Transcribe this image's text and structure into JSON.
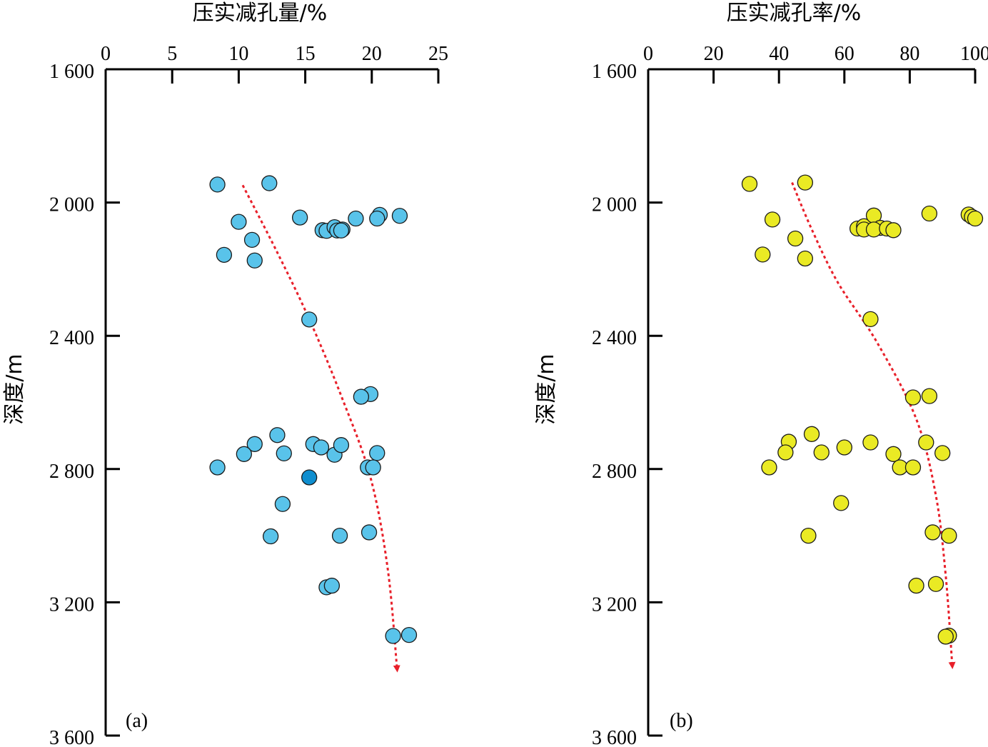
{
  "chart_data": [
    {
      "type": "scatter",
      "panel_label": "(a)",
      "title": "压实减孔量/%",
      "ylabel": "深度/m",
      "xlim": [
        0,
        25
      ],
      "x_ticks": [
        "0",
        "5",
        "10",
        "15",
        "20",
        "25"
      ],
      "ylim": [
        1600,
        3600
      ],
      "y_ticks": [
        "1 600",
        "2 000",
        "2 400",
        "2 800",
        "3 200",
        "3 600"
      ],
      "y_inverted": true,
      "x_axis_position": "top",
      "marker_color": "#59c3ea",
      "highlight_color": "#0f8ecf",
      "trend_color": "#e8202a",
      "trend": [
        [
          10.3,
          1948
        ],
        [
          12.9,
          2150
        ],
        [
          15.3,
          2350
        ],
        [
          17.7,
          2580
        ],
        [
          19.9,
          2825
        ],
        [
          21.2,
          3100
        ],
        [
          21.9,
          3400
        ]
      ],
      "points": [
        [
          8.4,
          1946
        ],
        [
          12.3,
          1942
        ],
        [
          10.0,
          2058
        ],
        [
          14.6,
          2045
        ],
        [
          11.0,
          2112
        ],
        [
          8.9,
          2157
        ],
        [
          11.2,
          2174
        ],
        [
          16.3,
          2083
        ],
        [
          16.6,
          2085
        ],
        [
          17.2,
          2074
        ],
        [
          17.4,
          2084
        ],
        [
          17.8,
          2081
        ],
        [
          17.7,
          2084
        ],
        [
          18.8,
          2048
        ],
        [
          20.6,
          2037
        ],
        [
          20.4,
          2048
        ],
        [
          22.1,
          2040
        ],
        [
          15.3,
          2351
        ],
        [
          19.9,
          2575
        ],
        [
          19.2,
          2583
        ],
        [
          12.9,
          2698
        ],
        [
          11.2,
          2725
        ],
        [
          10.4,
          2755
        ],
        [
          13.4,
          2753
        ],
        [
          15.6,
          2725
        ],
        [
          16.2,
          2735
        ],
        [
          17.2,
          2757
        ],
        [
          17.7,
          2728
        ],
        [
          20.4,
          2752
        ],
        [
          8.4,
          2795
        ],
        [
          19.7,
          2795
        ],
        [
          20.1,
          2795
        ],
        [
          15.3,
          2825,
          "highlight"
        ],
        [
          13.3,
          2905
        ],
        [
          12.4,
          3002
        ],
        [
          17.6,
          3000
        ],
        [
          19.8,
          2990
        ],
        [
          16.6,
          3155
        ],
        [
          17.0,
          3150
        ],
        [
          21.6,
          3301
        ],
        [
          22.8,
          3298
        ]
      ]
    },
    {
      "type": "scatter",
      "panel_label": "(b)",
      "title": "压实减孔率/%",
      "ylabel": "深度/m",
      "xlim": [
        0,
        100
      ],
      "x_ticks": [
        "0",
        "20",
        "40",
        "60",
        "80",
        "100"
      ],
      "ylim": [
        1600,
        3600
      ],
      "y_ticks": [
        "1 600",
        "2 000",
        "2 400",
        "2 800",
        "3 200",
        "3 600"
      ],
      "y_inverted": true,
      "x_axis_position": "top",
      "marker_color": "#eaea24",
      "trend_color": "#e8202a",
      "trend": [
        [
          44,
          1940
        ],
        [
          50,
          2080
        ],
        [
          58,
          2240
        ],
        [
          70,
          2420
        ],
        [
          82,
          2650
        ],
        [
          88,
          2880
        ],
        [
          91,
          3120
        ],
        [
          93,
          3390
        ]
      ],
      "points": [
        [
          31,
          1944
        ],
        [
          48,
          1940
        ],
        [
          38,
          2051
        ],
        [
          45,
          2108
        ],
        [
          35,
          2156
        ],
        [
          48,
          2168
        ],
        [
          64,
          2078
        ],
        [
          66,
          2071
        ],
        [
          66,
          2081
        ],
        [
          69,
          2039
        ],
        [
          71,
          2076
        ],
        [
          69,
          2081
        ],
        [
          73,
          2078
        ],
        [
          75,
          2083
        ],
        [
          86,
          2033
        ],
        [
          98,
          2036
        ],
        [
          99,
          2043
        ],
        [
          100,
          2048
        ],
        [
          68,
          2350
        ],
        [
          86,
          2581
        ],
        [
          81,
          2585
        ],
        [
          50,
          2695
        ],
        [
          43,
          2718
        ],
        [
          42,
          2750
        ],
        [
          53,
          2750
        ],
        [
          60,
          2735
        ],
        [
          68,
          2720
        ],
        [
          75,
          2755
        ],
        [
          85,
          2720
        ],
        [
          90,
          2752
        ],
        [
          37,
          2795
        ],
        [
          77,
          2795
        ],
        [
          81,
          2795
        ],
        [
          59,
          2902
        ],
        [
          49,
          3000
        ],
        [
          87,
          2990
        ],
        [
          92,
          3000
        ],
        [
          82,
          3150
        ],
        [
          88,
          3145
        ],
        [
          92,
          3300
        ],
        [
          91,
          3303
        ]
      ]
    }
  ]
}
